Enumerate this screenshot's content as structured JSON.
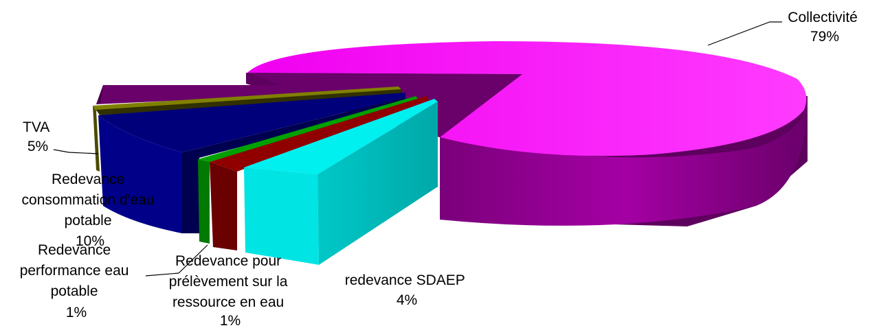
{
  "chart_data": {
    "type": "pie",
    "style": "3d-exploded",
    "slices": [
      {
        "name": "Collectivité",
        "value_label": "79%",
        "value": 79,
        "color": "#ec00ec"
      },
      {
        "name": "redevance SDAEP",
        "value_label": "4%",
        "value": 4,
        "color": "#00e0e0"
      },
      {
        "name": "Redevance pour prélèvement sur la ressource en eau",
        "value_label": "1%",
        "value": 1,
        "color": "#800000"
      },
      {
        "name": "Redevance performance eau potable",
        "value_label": "1%",
        "value": 1,
        "color": "#008000"
      },
      {
        "name": "Redevance consommation d'eau potable",
        "value_label": "10%",
        "value": 10,
        "color": "#000080"
      },
      {
        "name": "TVA",
        "value_label": "5%",
        "value": 5,
        "color": "#808000"
      }
    ],
    "labels": {
      "collectivite": [
        "Collectivité",
        "79%"
      ],
      "sdaep": [
        "redevance SDAEP",
        "4%"
      ],
      "prelevement": [
        "Redevance pour",
        "prélèvement sur la",
        "ressource en eau",
        "1%"
      ],
      "performance": [
        "Redevance",
        "performance eau",
        "potable",
        "1%"
      ],
      "consommation": [
        "Redevance",
        "consommation d'eau",
        "potable",
        "10%"
      ],
      "tva": [
        "TVA",
        "5%"
      ]
    }
  }
}
